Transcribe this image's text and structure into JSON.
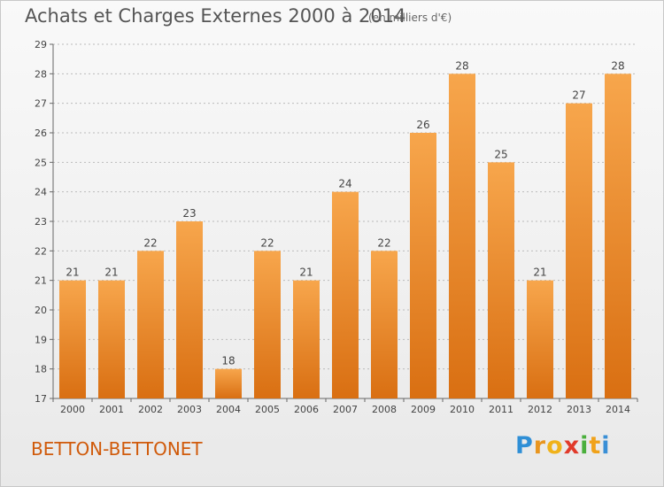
{
  "header": {
    "title": "Achats et Charges Externes 2000 à 2014",
    "subtitle": "(en milliers d'€)"
  },
  "footer": {
    "place": "BETTON-BETTONET",
    "brand_letters": [
      "P",
      "r",
      "o",
      "x",
      "i",
      "t",
      "i"
    ],
    "brand_colors": [
      "#2f8fd6",
      "#e8951f",
      "#f0b21a",
      "#e13a2a",
      "#4aaf3c",
      "#f0a21a",
      "#3a8fd6"
    ]
  },
  "colors": {
    "bar_top": "#f7a64c",
    "bar_bottom": "#d96f12",
    "place_text": "#d05a0a",
    "grid": "#bbbbbb",
    "axis_text": "#444444"
  },
  "chart_data": {
    "type": "bar",
    "title": "Achats et Charges Externes 2000 à 2014",
    "subtitle": "(en milliers d'€)",
    "categories": [
      "2000",
      "2001",
      "2002",
      "2003",
      "2004",
      "2005",
      "2006",
      "2007",
      "2008",
      "2009",
      "2010",
      "2011",
      "2012",
      "2013",
      "2014"
    ],
    "values": [
      21,
      21,
      22,
      23,
      18,
      22,
      21,
      24,
      22,
      26,
      28,
      25,
      21,
      27,
      28
    ],
    "data_labels": [
      "21",
      "21",
      "22",
      "23",
      "18",
      "22",
      "21",
      "24",
      "22",
      "26",
      "28",
      "25",
      "21",
      "27",
      "28"
    ],
    "ylim": [
      17,
      29
    ],
    "yticks": [
      17,
      18,
      19,
      20,
      21,
      22,
      23,
      24,
      25,
      26,
      27,
      28,
      29
    ],
    "grid": true,
    "legend": "none"
  }
}
